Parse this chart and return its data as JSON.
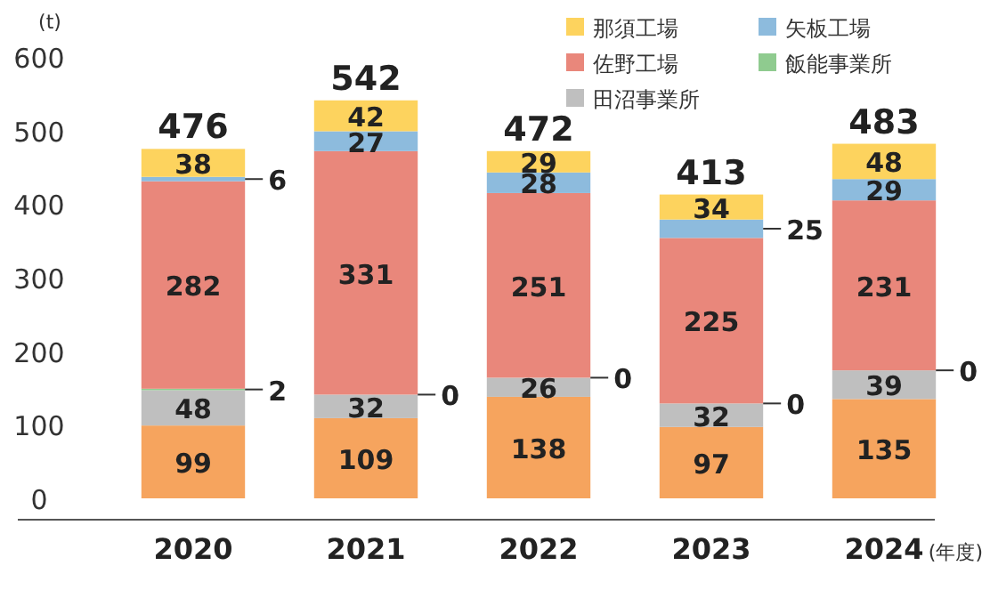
{
  "chart_data": {
    "type": "bar",
    "stacked": true,
    "ylabel": "(t)",
    "xlabel": "(年度)",
    "categories": [
      "2020",
      "2021",
      "2022",
      "2023",
      "2024"
    ],
    "series": [
      {
        "color": "#f6a45e",
        "values": [
          99,
          109,
          138,
          97,
          135
        ]
      },
      {
        "name": "田沼事業所",
        "color": "#bfbfbf",
        "values": [
          48,
          32,
          26,
          32,
          39
        ]
      },
      {
        "name": "飯能事業所",
        "color": "#8fcb8f",
        "values": [
          2,
          0,
          0,
          0,
          0
        ],
        "value_labels": [
          "2",
          null,
          null,
          null,
          null
        ]
      },
      {
        "name": "佐野工場",
        "color": "#e9877b",
        "values": [
          282,
          331,
          251,
          225,
          231
        ]
      },
      {
        "name": "矢板工場",
        "color": "#8dbbdd",
        "values": [
          6,
          27,
          28,
          25,
          29
        ]
      },
      {
        "name": "那須工場",
        "color": "#fdd35e",
        "values": [
          38,
          42,
          29,
          34,
          48
        ]
      }
    ],
    "totals": [
      "476",
      "542",
      "472",
      "413",
      "483"
    ],
    "annotations": [
      {
        "text": "0",
        "x": "2021",
        "y": 141
      },
      {
        "text": "0",
        "x": "2022",
        "y": 164
      },
      {
        "text": "0",
        "x": "2023",
        "y": 129
      },
      {
        "text": "0",
        "x": "2024",
        "y": 174
      }
    ],
    "data_labels": true,
    "legend": "top right",
    "ylim": [
      0,
      600
    ],
    "yticks": [
      0,
      100,
      200,
      300,
      400,
      500,
      600
    ],
    "grid": false
  }
}
